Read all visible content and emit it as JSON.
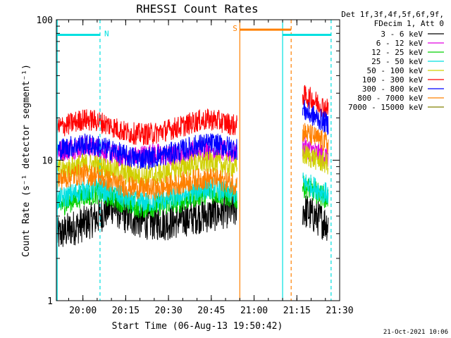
{
  "chart_data": {
    "type": "line",
    "title": "RHESSI Count Rates",
    "xlabel": "Start Time (06-Aug-13 19:50:42)",
    "ylabel": "Count Rate (s⁻¹ detector segment⁻¹)",
    "yscale": "log",
    "ylim": [
      1,
      100
    ],
    "y_ticks": [
      "1",
      "10",
      "100"
    ],
    "x_range": [
      "19:50:42",
      "21:30"
    ],
    "x_ticks": [
      "20:00",
      "20:15",
      "20:30",
      "20:45",
      "21:00",
      "21:15",
      "21:30"
    ],
    "grid": false,
    "legend_position": "right",
    "legend_header": [
      "Det 1f,3f,4f,5f,6f,9f,",
      "FDecim 1, Att 0"
    ],
    "series": [
      {
        "name": "3 - 6 keV",
        "color": "#000000",
        "segments": [
          {
            "x": [
              "19:51",
              "19:55",
              "20:00",
              "20:05",
              "20:10",
              "20:15",
              "20:20",
              "20:25",
              "20:30",
              "20:35",
              "20:40",
              "20:45",
              "20:50",
              "20:54"
            ],
            "y": [
              2.9,
              3.2,
              3.5,
              3.9,
              4.7,
              4.0,
              3.7,
              3.6,
              3.6,
              3.8,
              4.0,
              4.1,
              4.4,
              4.3
            ]
          },
          {
            "x": [
              "21:17",
              "21:20",
              "21:23",
              "21:26"
            ],
            "y": [
              4.5,
              4.1,
              3.8,
              3.5
            ]
          }
        ]
      },
      {
        "name": "6 - 12 keV",
        "color": "#e000e0",
        "segments": [
          {
            "x": [
              "19:51",
              "19:55",
              "20:00",
              "20:05",
              "20:10",
              "20:15",
              "20:20",
              "20:25",
              "20:30",
              "20:35",
              "20:40",
              "20:45",
              "20:50",
              "20:54"
            ],
            "y": [
              11.5,
              12.0,
              12.5,
              12.2,
              11.0,
              10.2,
              10.7,
              11.2,
              10.6,
              11.2,
              11.8,
              12.0,
              11.5,
              11.0
            ]
          },
          {
            "x": [
              "21:17",
              "21:20",
              "21:23",
              "21:26"
            ],
            "y": [
              12.5,
              11.8,
              11.0,
              10.5
            ]
          }
        ]
      },
      {
        "name": "12 - 25 keV",
        "color": "#00d000",
        "segments": [
          {
            "x": [
              "19:51",
              "19:55",
              "20:00",
              "20:05",
              "20:10",
              "20:15",
              "20:20",
              "20:25",
              "20:30",
              "20:35",
              "20:40",
              "20:45",
              "20:50",
              "20:54"
            ],
            "y": [
              4.7,
              5.0,
              5.6,
              5.8,
              5.5,
              4.9,
              4.6,
              4.7,
              4.9,
              5.1,
              5.6,
              5.9,
              5.6,
              5.3
            ]
          },
          {
            "x": [
              "21:17",
              "21:20",
              "21:23",
              "21:26"
            ],
            "y": [
              6.5,
              6.2,
              5.7,
              5.3
            ]
          }
        ]
      },
      {
        "name": "25 - 50 keV",
        "color": "#00e0e0",
        "segments": [
          {
            "x": [
              "19:51",
              "19:55",
              "20:00",
              "20:05",
              "20:10",
              "20:15",
              "20:20",
              "20:25",
              "20:30",
              "20:35",
              "20:40",
              "20:45",
              "20:50",
              "20:54"
            ],
            "y": [
              5.2,
              5.6,
              6.1,
              6.2,
              5.9,
              5.3,
              5.0,
              5.1,
              5.3,
              5.6,
              6.1,
              6.4,
              6.0,
              5.7
            ]
          },
          {
            "x": [
              "21:17",
              "21:20",
              "21:23",
              "21:26"
            ],
            "y": [
              7.0,
              6.6,
              6.1,
              5.7
            ]
          }
        ]
      },
      {
        "name": "50 - 100 keV",
        "color": "#d0d000",
        "segments": [
          {
            "x": [
              "19:51",
              "19:55",
              "20:00",
              "20:05",
              "20:10",
              "20:15",
              "20:20",
              "20:25",
              "20:30",
              "20:35",
              "20:40",
              "20:45",
              "20:50",
              "20:54"
            ],
            "y": [
              8.4,
              8.8,
              9.4,
              9.2,
              8.6,
              8.0,
              7.7,
              7.8,
              8.3,
              8.9,
              9.5,
              9.7,
              9.2,
              8.8
            ]
          },
          {
            "x": [
              "21:17",
              "21:20",
              "21:23",
              "21:26"
            ],
            "y": [
              11.0,
              10.5,
              9.9,
              9.4
            ]
          }
        ]
      },
      {
        "name": "100 - 300 keV",
        "color": "#ff0000",
        "segments": [
          {
            "x": [
              "19:51",
              "19:55",
              "20:00",
              "20:05",
              "20:10",
              "20:15",
              "20:20",
              "20:25",
              "20:30",
              "20:35",
              "20:40",
              "20:45",
              "20:50",
              "20:54"
            ],
            "y": [
              17.0,
              18.0,
              19.5,
              19.0,
              17.5,
              15.8,
              15.3,
              15.5,
              16.5,
              17.5,
              19.0,
              19.5,
              18.5,
              17.5
            ]
          },
          {
            "x": [
              "21:17",
              "21:20",
              "21:23",
              "21:26"
            ],
            "y": [
              29.0,
              27.5,
              25.0,
              23.0
            ]
          }
        ]
      },
      {
        "name": "300 - 800 keV",
        "color": "#0000ff",
        "segments": [
          {
            "x": [
              "19:51",
              "19:55",
              "20:00",
              "20:05",
              "20:10",
              "20:15",
              "20:20",
              "20:25",
              "20:30",
              "20:35",
              "20:40",
              "20:45",
              "20:50",
              "20:54"
            ],
            "y": [
              11.8,
              12.4,
              13.0,
              12.6,
              11.8,
              10.7,
              10.3,
              10.5,
              11.1,
              11.8,
              12.8,
              13.1,
              12.6,
              12.0
            ]
          },
          {
            "x": [
              "21:17",
              "21:20",
              "21:23",
              "21:26"
            ],
            "y": [
              23.0,
              21.0,
              19.5,
              18.0
            ]
          }
        ]
      },
      {
        "name": "800 - 7000 keV",
        "color": "#ff8000",
        "segments": [
          {
            "x": [
              "19:51",
              "19:55",
              "20:00",
              "20:05",
              "20:10",
              "20:15",
              "20:20",
              "20:25",
              "20:30",
              "20:35",
              "20:40",
              "20:45",
              "20:50",
              "20:54"
            ],
            "y": [
              7.2,
              7.6,
              8.0,
              7.7,
              7.0,
              6.5,
              6.3,
              6.2,
              6.5,
              6.9,
              7.3,
              7.4,
              7.1,
              6.7
            ]
          },
          {
            "x": [
              "21:17",
              "21:20",
              "21:23",
              "21:26"
            ],
            "y": [
              16.0,
              15.0,
              14.0,
              13.0
            ]
          }
        ]
      },
      {
        "name": "7000 - 15000 keV",
        "color": "#808000",
        "segments": []
      }
    ],
    "annotations": [
      {
        "label": "N",
        "color": "#00e0e0",
        "x_start": "19:51",
        "x_end": "20:06",
        "level": 78
      },
      {
        "label": "S",
        "color": "#ff8000",
        "x_start": "20:55",
        "x_end": "21:13",
        "level": 85
      },
      {
        "label": "",
        "color": "#00e0e0",
        "x_start": "21:10",
        "x_end": "21:27",
        "level": 78
      }
    ],
    "vertical_lines": [
      {
        "x": "19:51",
        "color": "#00e0e0",
        "style": "solid"
      },
      {
        "x": "20:06",
        "color": "#00e0e0",
        "style": "dashed"
      },
      {
        "x": "20:55",
        "color": "#ff8000",
        "style": "solid"
      },
      {
        "x": "21:13",
        "color": "#ff8000",
        "style": "dashed"
      },
      {
        "x": "21:10",
        "color": "#00e0e0",
        "style": "solid"
      },
      {
        "x": "21:27",
        "color": "#00e0e0",
        "style": "dashed"
      }
    ]
  },
  "footer": {
    "timestamp": "21-Oct-2021 10:06"
  }
}
